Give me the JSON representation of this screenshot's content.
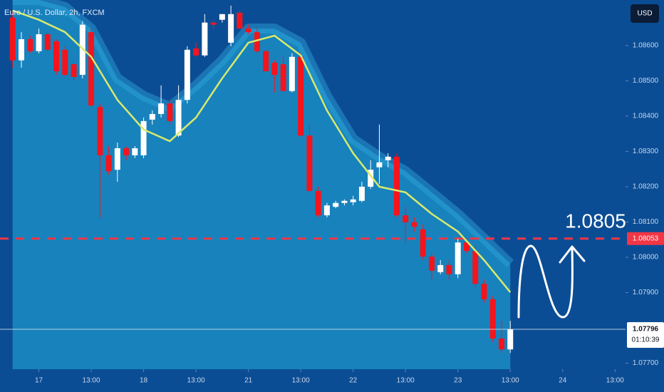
{
  "chart_data": {
    "type": "candlestick",
    "title": "Euro / U.S. Dollar, 2h, FXCM",
    "currency": "USD",
    "up_color": "#ffffff",
    "down_color": "#f5141c",
    "candles": {
      "open": [
        1.08679,
        1.08558,
        1.08618,
        1.08584,
        1.08632,
        1.08612,
        1.08588,
        1.08547,
        1.08517,
        1.08638,
        1.08426,
        1.08289,
        1.08248,
        1.08309,
        1.08289,
        1.08289,
        1.0839,
        1.08406,
        1.08436,
        1.08345,
        1.08446,
        1.08592,
        1.08572,
        1.08665,
        1.08673,
        1.08608,
        1.08693,
        1.08648,
        1.08638,
        1.08584,
        1.08551,
        1.08547,
        1.08471,
        1.08568,
        1.08345,
        1.08188,
        1.08119,
        1.08143,
        1.08154,
        1.08156,
        1.0816,
        1.082,
        1.08255,
        1.08275,
        1.08285,
        1.08119,
        1.08099,
        1.08079,
        1.08002,
        1.07958,
        1.07978,
        1.07952,
        1.08042,
        1.08018,
        1.07925,
        1.07881,
        1.0777,
        1.07739
      ],
      "high": [
        1.08699,
        1.08638,
        1.08628,
        1.08648,
        1.08638,
        1.08618,
        1.08598,
        1.08551,
        1.08669,
        1.08648,
        1.08436,
        1.08315,
        1.08325,
        1.08315,
        1.08315,
        1.08396,
        1.08416,
        1.08487,
        1.08446,
        1.08487,
        1.08598,
        1.08608,
        1.08689,
        1.08673,
        1.08689,
        1.08713,
        1.08699,
        1.08659,
        1.08648,
        1.08588,
        1.08558,
        1.08568,
        1.08578,
        1.08578,
        1.08376,
        1.082,
        1.08154,
        1.0816,
        1.08164,
        1.08174,
        1.08214,
        1.08275,
        1.08376,
        1.08295,
        1.08295,
        1.08143,
        1.08113,
        1.08093,
        1.08012,
        1.07992,
        1.07992,
        1.08053,
        1.08053,
        1.08032,
        1.07937,
        1.07891,
        1.0782,
        1.0782
      ],
      "low": [
        1.08537,
        1.08537,
        1.08578,
        1.08578,
        1.08584,
        1.08517,
        1.08511,
        1.08503,
        1.08507,
        1.08426,
        1.08113,
        1.08234,
        1.08214,
        1.08275,
        1.08281,
        1.08281,
        1.08376,
        1.08396,
        1.08376,
        1.08341,
        1.08436,
        1.08568,
        1.08568,
        1.08648,
        1.08665,
        1.08598,
        1.08648,
        1.08632,
        1.08578,
        1.08527,
        1.08467,
        1.08471,
        1.08467,
        1.08341,
        1.08184,
        1.08113,
        1.08113,
        1.08139,
        1.08147,
        1.08147,
        1.08156,
        1.08194,
        1.08208,
        1.08255,
        1.08113,
        1.08042,
        1.08073,
        1.07992,
        1.07937,
        1.07952,
        1.07937,
        1.07941,
        1.08012,
        1.07915,
        1.07871,
        1.0776,
        1.07729,
        1.07729
      ],
      "close": [
        1.08558,
        1.08618,
        1.08584,
        1.08632,
        1.08588,
        1.08527,
        1.08517,
        1.08511,
        1.08659,
        1.0843,
        1.08289,
        1.08244,
        1.08309,
        1.08289,
        1.08309,
        1.08386,
        1.08406,
        1.08436,
        1.08386,
        1.08446,
        1.08588,
        1.08572,
        1.08665,
        1.08659,
        1.08689,
        1.08689,
        1.08648,
        1.08638,
        1.08584,
        1.08527,
        1.08517,
        1.08471,
        1.08568,
        1.08345,
        1.08188,
        1.08119,
        1.08147,
        1.08154,
        1.0816,
        1.08164,
        1.082,
        1.08248,
        1.08269,
        1.08285,
        1.08119,
        1.08099,
        1.08087,
        1.08002,
        1.07962,
        1.07978,
        1.07952,
        1.08042,
        1.08018,
        1.07925,
        1.07881,
        1.0777,
        1.07739,
        1.07796
      ]
    },
    "ma": {
      "color": "#d8ea6c",
      "x": [
        0,
        3,
        6,
        9,
        12,
        15,
        18,
        21,
        24,
        27,
        30,
        33,
        36,
        39,
        42,
        45,
        48,
        51,
        54,
        57
      ],
      "values": [
        1.08699,
        1.08673,
        1.08638,
        1.08568,
        1.08446,
        1.08362,
        1.08329,
        1.08396,
        1.08507,
        1.08608,
        1.08628,
        1.08572,
        1.08416,
        1.08295,
        1.082,
        1.08184,
        1.08123,
        1.08073,
        1.07992,
        1.07901
      ]
    },
    "band_upper": {
      "color": "#1b8cc4",
      "x": [
        0,
        3,
        6,
        9,
        12,
        15,
        18,
        21,
        24,
        27,
        30,
        33,
        36,
        39,
        42,
        45,
        48,
        51,
        54,
        57
      ],
      "values": [
        1.08729,
        1.08729,
        1.08709,
        1.08648,
        1.08507,
        1.08457,
        1.08426,
        1.08487,
        1.08558,
        1.08648,
        1.08648,
        1.08608,
        1.08457,
        1.08335,
        1.08285,
        1.08244,
        1.08184,
        1.08123,
        1.08053,
        1.07982
      ]
    },
    "level": {
      "value": 1.08053,
      "color": "#f23645"
    },
    "last_price": {
      "value": 1.07796,
      "countdown": "01:10:39"
    },
    "annotation": "1.0805",
    "ylim": [
      1.07683,
      1.08729
    ],
    "yticks": [
      {
        "value": 1.086,
        "label": "1.08600"
      },
      {
        "value": 1.085,
        "label": "1.08500"
      },
      {
        "value": 1.084,
        "label": "1.08400"
      },
      {
        "value": 1.083,
        "label": "1.08300"
      },
      {
        "value": 1.082,
        "label": "1.08200"
      },
      {
        "value": 1.081,
        "label": "1.08100"
      },
      {
        "value": 1.08,
        "label": "1.08000"
      },
      {
        "value": 1.079,
        "label": "1.07900"
      },
      {
        "value": 1.077,
        "label": "1.07700"
      }
    ],
    "xlim": [
      -1.45,
      70.2
    ],
    "xticks": [
      {
        "value": 3,
        "label": "17"
      },
      {
        "value": 9,
        "label": "13:00"
      },
      {
        "value": 15,
        "label": "18"
      },
      {
        "value": 21,
        "label": "13:00"
      },
      {
        "value": 27,
        "label": "21"
      },
      {
        "value": 33,
        "label": "13:00"
      },
      {
        "value": 39,
        "label": "22"
      },
      {
        "value": 45,
        "label": "13:00"
      },
      {
        "value": 51,
        "label": "23"
      },
      {
        "value": 57,
        "label": "13:00"
      },
      {
        "value": 63,
        "label": "24"
      },
      {
        "value": 69,
        "label": "13:00"
      }
    ]
  }
}
